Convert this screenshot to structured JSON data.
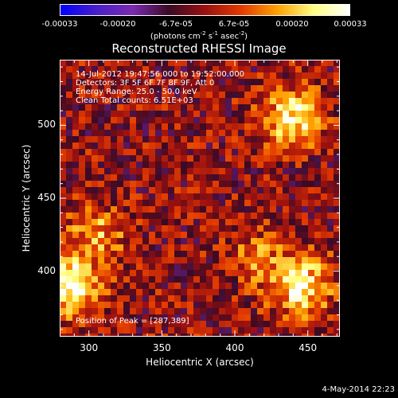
{
  "chart_data": {
    "type": "heatmap",
    "title": "Reconstructed RHESSI Image",
    "xlabel": "Heliocentric X (arcsec)",
    "ylabel": "Heliocentric Y (arcsec)",
    "xlim": [
      280,
      472
    ],
    "ylim": [
      355,
      545
    ],
    "x_ticks": [
      "300",
      "350",
      "400",
      "450"
    ],
    "x_tick_values": [
      300,
      350,
      400,
      450
    ],
    "y_ticks": [
      "400",
      "450",
      "500"
    ],
    "y_tick_values": [
      400,
      450,
      500
    ],
    "colorbar": {
      "range": [
        -0.00033,
        0.00033
      ],
      "tick_labels": [
        "-0.00033",
        "-0.00020",
        "-6.7e-05",
        "6.7e-05",
        "0.00020",
        "0.00033"
      ],
      "units_label": "(photons cm",
      "units_sup1": "-2",
      "units_mid": " s",
      "units_sup2": "-1",
      "units_end": " asec",
      "units_sup3": "-2",
      "units_close": ")",
      "colors": [
        "#0000ff",
        "#4a1fc8",
        "#7a2ab0",
        "#3b0a25",
        "#9a1010",
        "#e23a00",
        "#ffa000",
        "#ffff80",
        "#ffffff"
      ]
    },
    "annotations": [
      "14-Jul-2012 19:47:56.000 to 19:52:00.000",
      "Detectors: 3F 5F 6F 7F 8F 9F, Att 0",
      "Energy Range: 25.0 - 50.0 keV",
      "Clean     Total counts: 6.51E+03"
    ],
    "peak_label": "Position of Peak = [287,389]",
    "peak": [
      287,
      389
    ],
    "sources": [
      {
        "x": 287,
        "y": 389,
        "intensity": 0.00033
      },
      {
        "x": 445,
        "y": 390,
        "intensity": 0.0003
      },
      {
        "x": 440,
        "y": 505,
        "intensity": 0.00028
      },
      {
        "x": 305,
        "y": 425,
        "intensity": 0.00018
      },
      {
        "x": 415,
        "y": 410,
        "intensity": 0.00012
      }
    ]
  },
  "footer": "4-May-2014 22:23"
}
